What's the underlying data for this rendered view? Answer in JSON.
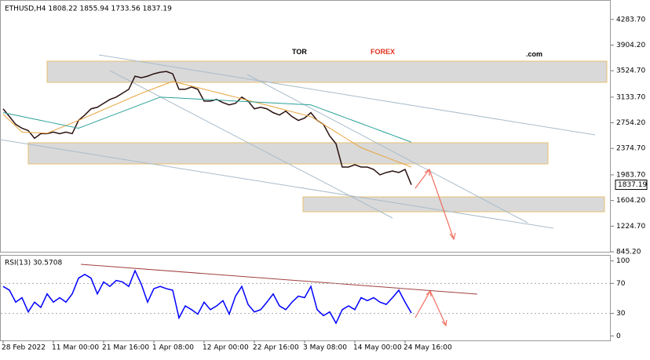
{
  "chart_data": [
    {
      "type": "line",
      "title": "ETHUSD,H4  1808.22 1855.94 1733.56 1837.19",
      "watermark": [
        "TOR",
        "FOREX",
        ".com"
      ],
      "series": [
        {
          "color": "#2a1010",
          "values": [
            2961,
            2846,
            2731,
            2674,
            2639,
            2524,
            2593,
            2593,
            2616,
            2593,
            2616,
            2593,
            2789,
            2869,
            2961,
            2984,
            3042,
            3099,
            3134,
            3191,
            3249,
            3444,
            3421,
            3444,
            3479,
            3502,
            3513,
            3479,
            3249,
            3249,
            3283,
            3249,
            3076,
            3076,
            3099,
            3053,
            3019,
            3042,
            3134,
            3076,
            2961,
            2984,
            2961,
            2904,
            2869,
            2927,
            2846,
            2789,
            2823,
            2904,
            2789,
            2731,
            2559,
            2444,
            2099,
            2099,
            2133,
            2099,
            2099,
            2064,
            1984,
            2018,
            2041,
            2018,
            2064,
            1837.19
          ]
        },
        {
          "color": "#e8a33c",
          "values": [
            2880,
            2792,
            2704,
            2616,
            2612,
            2608,
            2604,
            2600,
            2638,
            2676,
            2713,
            2751,
            2789,
            2829,
            2869,
            2910,
            2950,
            2990,
            3030,
            3070,
            3111,
            3151,
            3191,
            3226,
            3261,
            3297,
            3332,
            3367,
            3344,
            3321,
            3297,
            3274,
            3251,
            3227,
            3204,
            3181,
            3157,
            3134,
            3110,
            3086,
            3062,
            3038,
            3014,
            2990,
            2966,
            2942,
            2918,
            2894,
            2870,
            2846,
            2789,
            2731,
            2674,
            2616,
            2559,
            2501,
            2444,
            2386,
            2350,
            2314,
            2278,
            2243,
            2207,
            2171,
            2135,
            2099
          ]
        },
        {
          "color": "#2aa198",
          "values": [
            2904,
            2885,
            2866,
            2847,
            2827,
            2808,
            2789,
            2770,
            2751,
            2731,
            2712,
            2693,
            2674,
            2709,
            2744,
            2780,
            2815,
            2851,
            2886,
            2921,
            2957,
            2992,
            3028,
            3063,
            3098,
            3134,
            3129,
            3124,
            3120,
            3115,
            3110,
            3105,
            3100,
            3095,
            3091,
            3086,
            3081,
            3076,
            3071,
            3067,
            3062,
            3057,
            3052,
            3048,
            3043,
            3038,
            3033,
            3028,
            3024,
            3019,
            2985,
            2950,
            2916,
            2881,
            2847,
            2812,
            2778,
            2743,
            2709,
            2674,
            2640,
            2605,
            2571,
            2536,
            2502,
            2467
          ]
        }
      ],
      "ylim": [
        834,
        4571
      ],
      "yticks": [
        {
          "value": 4283.7,
          "label": "4283.70"
        },
        {
          "value": 3904.2,
          "label": "3904.20"
        },
        {
          "value": 3524.7,
          "label": "3524.70"
        },
        {
          "value": 3133.7,
          "label": "3133.70"
        },
        {
          "value": 2754.2,
          "label": "2754.20"
        },
        {
          "value": 2374.7,
          "label": "2374.70"
        },
        {
          "value": 1983.7,
          "label": "1983.70"
        },
        {
          "value": 1604.2,
          "label": "1604.20"
        },
        {
          "value": 1224.7,
          "label": "1224.70"
        },
        {
          "value": 845.2,
          "label": "845.20"
        }
      ]
    },
    {
      "type": "line",
      "title": "RSI(13) 30.5708",
      "categories": [
        "28 Feb 2022",
        null,
        null,
        null,
        null,
        null,
        null,
        null,
        "11 Mar 00:00",
        null,
        null,
        null,
        null,
        null,
        null,
        null,
        "21 Mar 16:00",
        null,
        null,
        null,
        null,
        null,
        null,
        null,
        "1 Apr 08:00",
        null,
        null,
        null,
        null,
        null,
        null,
        null,
        "12 Apr 00:00",
        null,
        null,
        null,
        null,
        null,
        null,
        null,
        "22 Apr 16:00",
        null,
        null,
        null,
        null,
        null,
        null,
        null,
        "3 May 08:00",
        null,
        null,
        null,
        null,
        null,
        null,
        null,
        "14 May 00:00",
        null,
        null,
        null,
        null,
        null,
        null,
        null,
        "24 May 16:00",
        null
      ],
      "series": [
        {
          "color": "#0000ff",
          "values": [
            66,
            61,
            45,
            51,
            32,
            45,
            38,
            56,
            45,
            51,
            45,
            56,
            77,
            82,
            77,
            56,
            72,
            66,
            74,
            72,
            66,
            87,
            69,
            45,
            63,
            66,
            63,
            61,
            24,
            40,
            35,
            29,
            45,
            35,
            40,
            47,
            29,
            53,
            66,
            42,
            32,
            35,
            45,
            56,
            40,
            35,
            45,
            53,
            51,
            66,
            35,
            27,
            32,
            17,
            35,
            40,
            35,
            51,
            47,
            51,
            45,
            42,
            51,
            61,
            45,
            30.5708
          ]
        }
      ],
      "ylim": [
        -6,
        107
      ],
      "yticks": [
        100,
        70,
        30,
        0
      ],
      "grid_lines": [
        70,
        30
      ]
    }
  ]
}
